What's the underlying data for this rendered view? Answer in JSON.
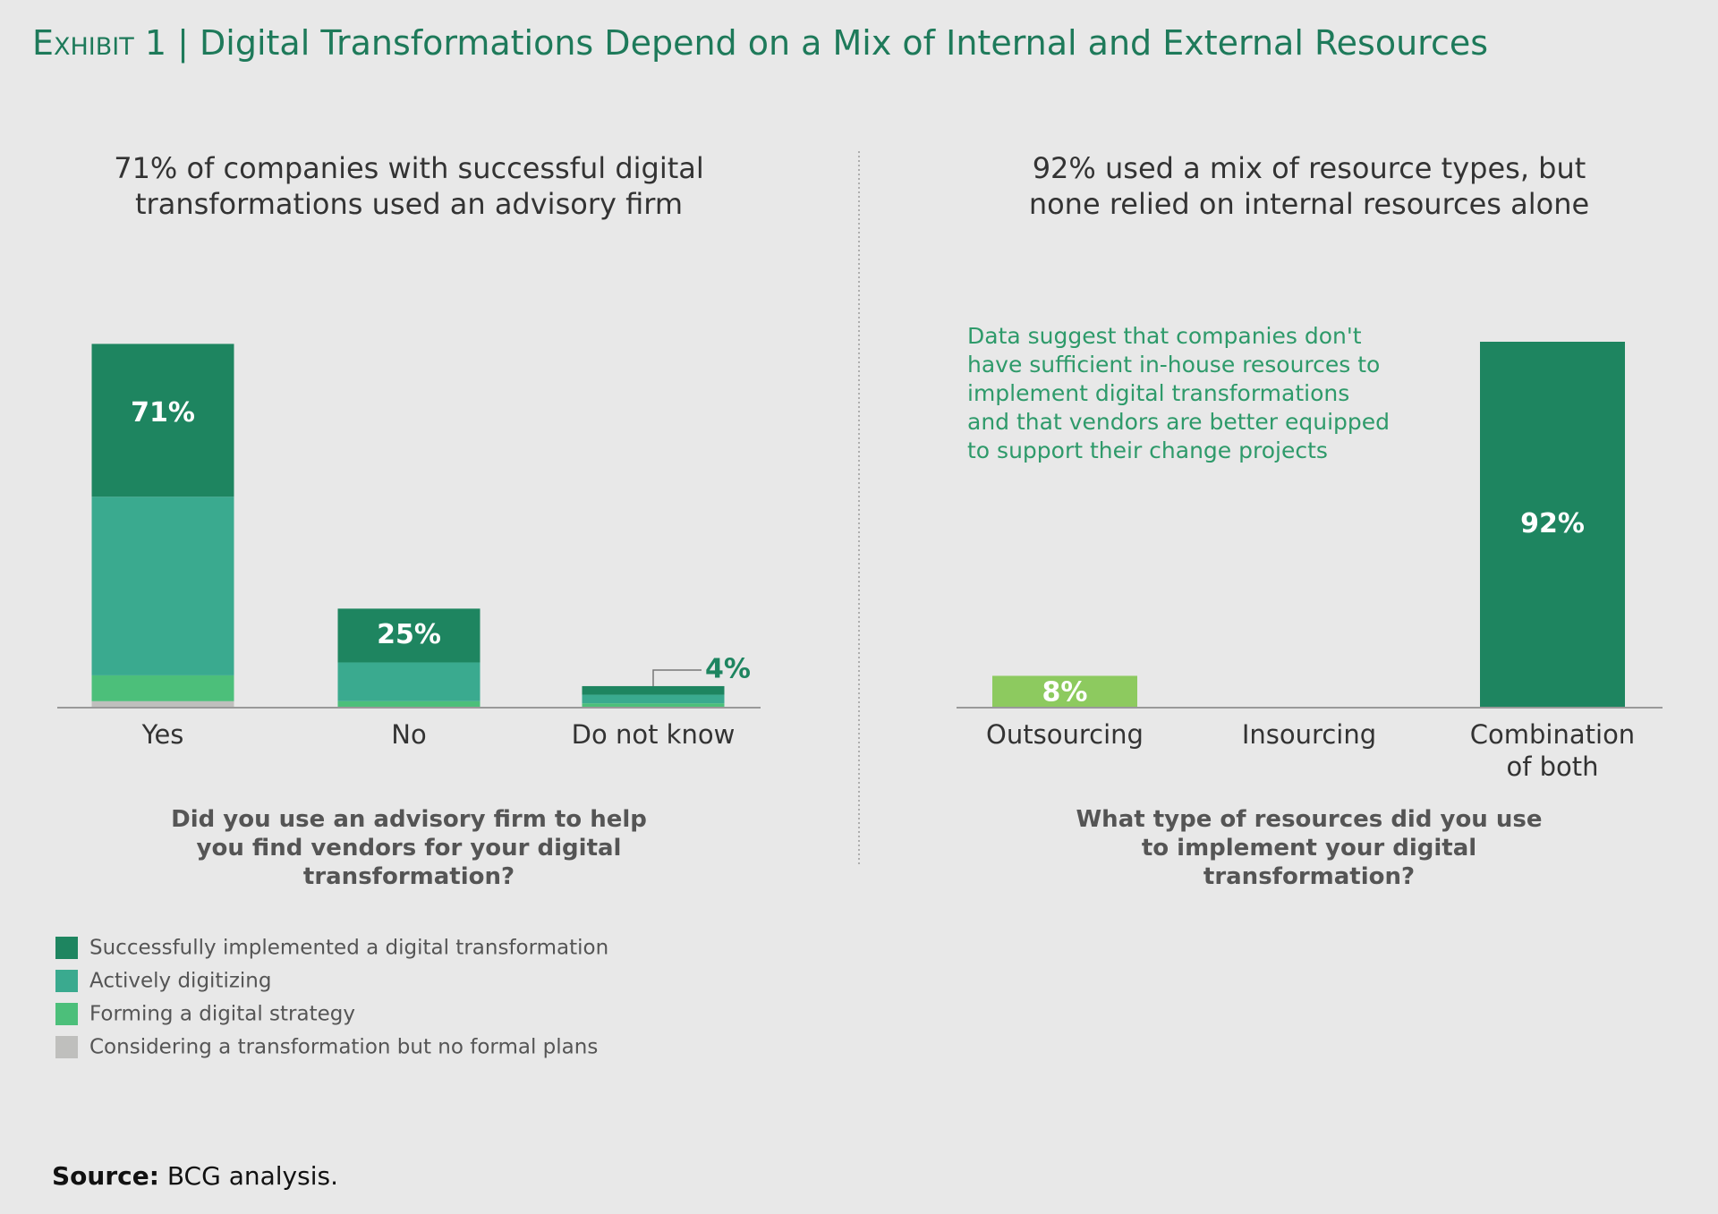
{
  "header": {
    "exhibit": "Exhibit 1",
    "separator": "|",
    "title": "Digital Transformations Depend on a Mix of Internal and External Resources"
  },
  "chart_data": [
    {
      "type": "stacked_bar",
      "title": "71% of companies with successful digital transformations used an advisory firm",
      "categories": [
        "Yes",
        "No",
        "Do not know"
      ],
      "xlabel": "Did you use an advisory firm to help you find vendors for your digital transformation?",
      "ylim": [
        0,
        170
      ],
      "series": [
        {
          "name": "Considering a transformation but no formal plans",
          "color": "#bfbfbd",
          "values": [
            3,
            0,
            0
          ]
        },
        {
          "name": "Forming a digital strategy",
          "color": "#4cbf7a",
          "values": [
            12,
            3,
            2
          ]
        },
        {
          "name": "Actively digitizing",
          "color": "#3aaa8f",
          "values": [
            83,
            18,
            4
          ]
        },
        {
          "name": "Successfully implemented a digital transformation",
          "color": "#1e8560",
          "values": [
            71,
            25,
            4
          ],
          "value_labels": [
            "71%",
            "25%",
            "4%"
          ]
        }
      ]
    },
    {
      "type": "bar",
      "title": "92% used a mix of resource types, but none relied on internal resources alone",
      "categories": [
        "Outsourcing",
        "Insourcing",
        "Combination of both"
      ],
      "xlabel": "What type of resources did you use to implement your digital transformation?",
      "ylim": [
        0,
        92
      ],
      "values": [
        8,
        0,
        92
      ],
      "value_labels": [
        "8%",
        null,
        "92%"
      ],
      "colors": [
        "#8dca5f",
        "#8dca5f",
        "#1e8560"
      ],
      "annotation": [
        "Data suggest that companies don't",
        "have sufficient in-house resources to",
        "implement digital transformations",
        "and that vendors are better equipped",
        "to support their change projects"
      ]
    }
  ],
  "source": {
    "label": "Source:",
    "text": "BCG analysis."
  }
}
